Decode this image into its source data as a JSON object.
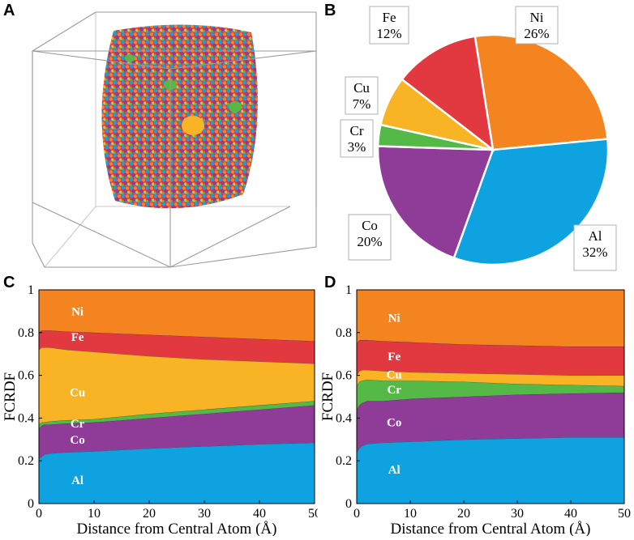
{
  "panels": {
    "a": "A",
    "b": "B",
    "c": "C",
    "d": "D"
  },
  "colors": {
    "Al": "#0ea2e0",
    "Co": "#8f3c98",
    "Cr": "#55b948",
    "Cu": "#f8b424",
    "Fe": "#e1393f",
    "Ni": "#f4841f"
  },
  "chart_data": [
    {
      "id": "A",
      "type": "other",
      "description_of_content": "3D atomistic nanoparticle rendering inside a wireframe box"
    },
    {
      "id": "B",
      "type": "pie",
      "title": "",
      "slices": [
        {
          "label": "Ni",
          "value": 26,
          "pct_text": "26%"
        },
        {
          "label": "Al",
          "value": 32,
          "pct_text": "32%"
        },
        {
          "label": "Co",
          "value": 20,
          "pct_text": "20%"
        },
        {
          "label": "Cr",
          "value": 3,
          "pct_text": "3%"
        },
        {
          "label": "Cu",
          "value": 7,
          "pct_text": "7%"
        },
        {
          "label": "Fe",
          "value": 12,
          "pct_text": "12%"
        }
      ]
    },
    {
      "id": "C",
      "type": "area",
      "xlabel": "Distance from Central Atom (Å)",
      "ylabel": "FCRDF",
      "xlim": [
        0,
        50
      ],
      "ylim": [
        0,
        1
      ],
      "xticks": [
        "0",
        "10",
        "20",
        "30",
        "40",
        "50"
      ],
      "yticks": [
        "0",
        "0.2",
        "0.4",
        "0.6",
        "0.8",
        "1"
      ],
      "x": [
        0,
        0.5,
        1,
        2,
        5,
        10,
        20,
        30,
        40,
        50
      ],
      "cumulative_boundaries": {
        "Al": [
          0.21,
          0.22,
          0.23,
          0.235,
          0.24,
          0.245,
          0.258,
          0.268,
          0.278,
          0.285
        ],
        "Co": [
          0.35,
          0.365,
          0.37,
          0.37,
          0.375,
          0.38,
          0.4,
          0.42,
          0.44,
          0.46
        ],
        "Cr": [
          0.37,
          0.38,
          0.38,
          0.385,
          0.39,
          0.395,
          0.42,
          0.44,
          0.46,
          0.48
        ],
        "Cu": [
          0.72,
          0.73,
          0.73,
          0.73,
          0.72,
          0.71,
          0.69,
          0.675,
          0.665,
          0.655
        ],
        "Fe": [
          0.8,
          0.81,
          0.81,
          0.81,
          0.805,
          0.8,
          0.79,
          0.78,
          0.77,
          0.76
        ],
        "Ni": [
          1,
          1,
          1,
          1,
          1,
          1,
          1,
          1,
          1,
          1
        ]
      },
      "area_labels": [
        {
          "name": "Ni",
          "x": 7,
          "y": 0.9
        },
        {
          "name": "Fe",
          "x": 7,
          "y": 0.78
        },
        {
          "name": "Cu",
          "x": 7,
          "y": 0.52
        },
        {
          "name": "Cr",
          "x": 7,
          "y": 0.375
        },
        {
          "name": "Co",
          "x": 7,
          "y": 0.3
        },
        {
          "name": "Al",
          "x": 7,
          "y": 0.11
        }
      ]
    },
    {
      "id": "D",
      "type": "area",
      "xlabel": "Distance from Central Atom (Å)",
      "ylabel": "FCRDF",
      "xlim": [
        0,
        50
      ],
      "ylim": [
        0,
        1
      ],
      "xticks": [
        "0",
        "10",
        "20",
        "30",
        "40",
        "50"
      ],
      "yticks": [
        "0",
        "0.2",
        "0.4",
        "0.6",
        "0.8",
        "1"
      ],
      "x": [
        0,
        0.5,
        1,
        2,
        5,
        10,
        20,
        30,
        40,
        50
      ],
      "cumulative_boundaries": {
        "Al": [
          0.24,
          0.26,
          0.27,
          0.28,
          0.285,
          0.29,
          0.3,
          0.305,
          0.31,
          0.31
        ],
        "Co": [
          0.44,
          0.46,
          0.47,
          0.48,
          0.48,
          0.49,
          0.5,
          0.51,
          0.515,
          0.52
        ],
        "Cr": [
          0.55,
          0.57,
          0.575,
          0.58,
          0.575,
          0.575,
          0.57,
          0.56,
          0.555,
          0.55
        ],
        "Cu": [
          0.6,
          0.62,
          0.625,
          0.625,
          0.62,
          0.615,
          0.61,
          0.605,
          0.6,
          0.6
        ],
        "Fe": [
          0.75,
          0.765,
          0.765,
          0.765,
          0.76,
          0.755,
          0.745,
          0.74,
          0.735,
          0.735
        ],
        "Ni": [
          1,
          1,
          1,
          1,
          1,
          1,
          1,
          1,
          1,
          1
        ]
      },
      "area_labels": [
        {
          "name": "Ni",
          "x": 7,
          "y": 0.87
        },
        {
          "name": "Fe",
          "x": 7,
          "y": 0.69
        },
        {
          "name": "Cu",
          "x": 7,
          "y": 0.605
        },
        {
          "name": "Cr",
          "x": 7,
          "y": 0.535
        },
        {
          "name": "Co",
          "x": 7,
          "y": 0.38
        },
        {
          "name": "Al",
          "x": 7,
          "y": 0.16
        }
      ]
    }
  ]
}
